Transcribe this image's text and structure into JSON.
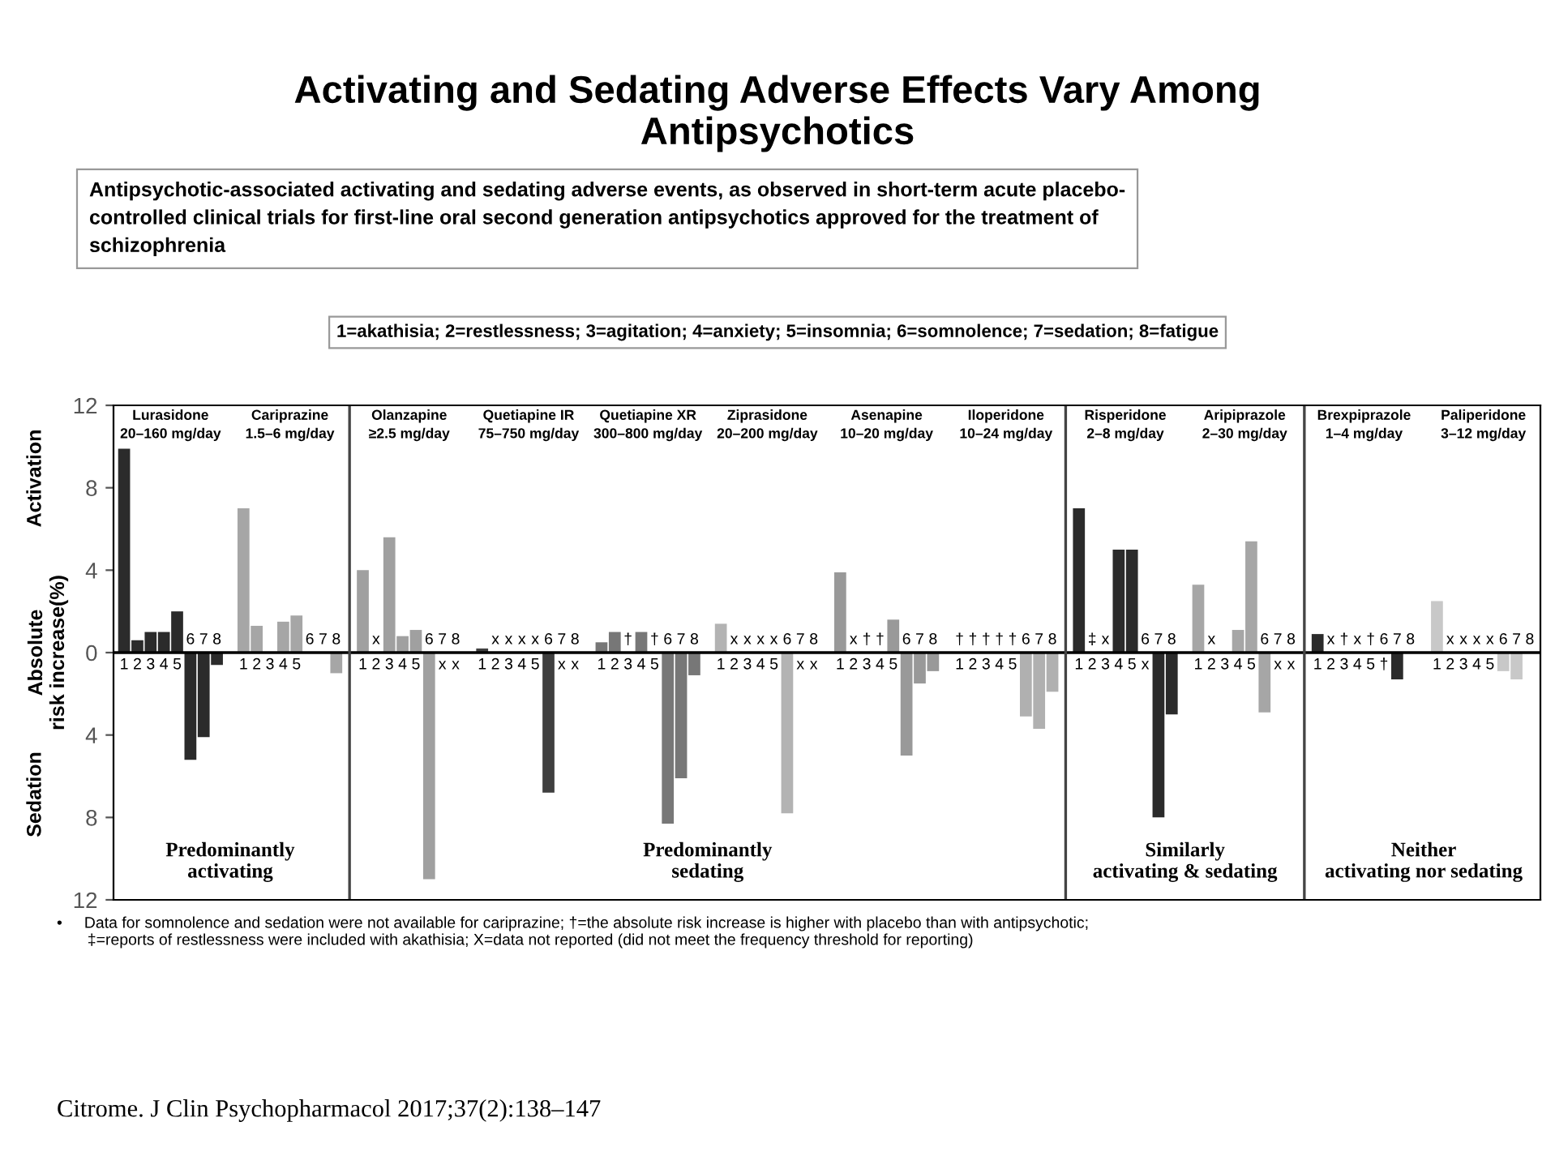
{
  "chart_data": {
    "type": "bar",
    "title": "Activating and Sedating Adverse Effects Vary Among\nAntipsychotics",
    "subtitle": "Antipsychotic-associated activating and sedating adverse events, as observed in short-term acute placebo-\ncontrolled clinical trials for first-line oral second generation antipsychotics approved for the treatment of\nschizophrenia",
    "ylabel": "Absolute\nrisk increase(%)",
    "categories": [
      "1",
      "2",
      "3",
      "4",
      "5",
      "6",
      "7",
      "8",
      null,
      "1",
      "2",
      "3",
      "4",
      "5",
      "6",
      "7",
      "8",
      null,
      "1",
      "2",
      "3",
      "4",
      "5",
      "6",
      "7",
      "8",
      null,
      "1",
      "2",
      "3",
      "4",
      "5",
      "6",
      "7",
      "8",
      null,
      "1",
      "2",
      "3",
      "4",
      "5",
      "6",
      "7",
      "8",
      null,
      "1",
      "2",
      "3",
      "4",
      "5",
      "6",
      "7",
      "8",
      null,
      "1",
      "2",
      "3",
      "4",
      "5",
      "6",
      "7",
      "8",
      null,
      "1",
      "2",
      "3",
      "4",
      "5",
      "6",
      "7",
      "8",
      null,
      "1",
      "2",
      "3",
      "4",
      "5",
      "6",
      "7",
      "8",
      null,
      "1",
      "2",
      "3",
      "4",
      "5",
      "6",
      "7",
      "8",
      null,
      "1",
      "2",
      "3",
      "4",
      "5",
      "6",
      "7",
      "8",
      null,
      "1",
      "2",
      "3",
      "4",
      "5",
      "6",
      "7",
      "8"
    ],
    "values": [
      9.9,
      0.6,
      1.0,
      1.0,
      2.0,
      -5.2,
      -4.1,
      -0.6,
      null,
      7.0,
      1.3,
      null,
      1.5,
      1.8,
      null,
      null,
      -1.0,
      null,
      4.0,
      null,
      5.6,
      0.8,
      1.1,
      -11.0,
      null,
      null,
      null,
      0.2,
      null,
      null,
      null,
      null,
      -6.8,
      null,
      null,
      null,
      0.5,
      1.0,
      null,
      1.0,
      null,
      -8.3,
      -6.1,
      -1.1,
      null,
      1.4,
      null,
      null,
      null,
      null,
      -7.8,
      null,
      null,
      null,
      3.9,
      null,
      null,
      null,
      1.6,
      -5.0,
      -1.5,
      -0.9,
      null,
      null,
      null,
      null,
      null,
      null,
      -3.1,
      -3.7,
      -1.9,
      null,
      7.0,
      null,
      null,
      5.0,
      5.0,
      null,
      -8.0,
      -3.0,
      null,
      3.3,
      null,
      null,
      1.1,
      5.4,
      -2.9,
      null,
      null,
      null,
      0.9,
      null,
      null,
      null,
      null,
      null,
      -1.3,
      null,
      null,
      2.5,
      null,
      null,
      null,
      null,
      -0.9,
      -1.3,
      null
    ],
    "value_labels": [
      null,
      null,
      null,
      null,
      null,
      null,
      null,
      null,
      null,
      null,
      null,
      null,
      null,
      null,
      null,
      null,
      null,
      null,
      null,
      "x",
      null,
      null,
      null,
      null,
      "x",
      "x",
      null,
      null,
      "x",
      "x",
      "x",
      "x",
      null,
      "x",
      "x",
      null,
      null,
      null,
      "†",
      null,
      "†",
      null,
      null,
      null,
      null,
      null,
      "x",
      "x",
      "x",
      "x",
      null,
      "x",
      "x",
      null,
      null,
      "x",
      "†",
      "†",
      null,
      null,
      null,
      null,
      null,
      "†",
      "†",
      "†",
      "†",
      "†",
      null,
      null,
      null,
      null,
      null,
      "‡",
      "x",
      null,
      null,
      "x",
      null,
      null,
      null,
      null,
      "x",
      null,
      null,
      null,
      null,
      "x",
      "x",
      null,
      null,
      "x",
      "†",
      "x",
      "†",
      "†",
      null,
      null,
      null,
      null,
      "x",
      "x",
      "x",
      "x",
      null,
      null,
      null
    ],
    "colors": [
      "#2b2b2b",
      "#2b2b2b",
      "#2b2b2b",
      "#2b2b2b",
      "#2b2b2b",
      "#2b2b2b",
      "#2b2b2b",
      "#2b2b2b",
      null,
      "#a6a6a6",
      "#a6a6a6",
      "#a6a6a6",
      "#a6a6a6",
      "#a6a6a6",
      "#a6a6a6",
      "#a6a6a6",
      "#a6a6a6",
      null,
      "#a0a0a0",
      "#a0a0a0",
      "#a0a0a0",
      "#a0a0a0",
      "#a0a0a0",
      "#a0a0a0",
      "#a0a0a0",
      "#a0a0a0",
      null,
      "#3f3f3f",
      "#3f3f3f",
      "#3f3f3f",
      "#3f3f3f",
      "#3f3f3f",
      "#3f3f3f",
      "#3f3f3f",
      "#3f3f3f",
      null,
      "#777777",
      "#777777",
      "#777777",
      "#777777",
      "#777777",
      "#777777",
      "#777777",
      "#777777",
      null,
      "#b3b3b3",
      "#b3b3b3",
      "#b3b3b3",
      "#b3b3b3",
      "#b3b3b3",
      "#b3b3b3",
      "#b3b3b3",
      "#b3b3b3",
      null,
      "#999999",
      "#999999",
      "#999999",
      "#999999",
      "#999999",
      "#999999",
      "#999999",
      "#999999",
      null,
      "#b0b0b0",
      "#b0b0b0",
      "#b0b0b0",
      "#b0b0b0",
      "#b0b0b0",
      "#b0b0b0",
      "#b0b0b0",
      "#b0b0b0",
      null,
      "#2b2b2b",
      "#2b2b2b",
      "#2b2b2b",
      "#2b2b2b",
      "#2b2b2b",
      "#2b2b2b",
      "#2b2b2b",
      "#2b2b2b",
      null,
      "#a6a6a6",
      "#a6a6a6",
      "#a6a6a6",
      "#a6a6a6",
      "#a6a6a6",
      "#a6a6a6",
      "#a6a6a6",
      "#a6a6a6",
      null,
      "#2b2b2b",
      "#2b2b2b",
      "#2b2b2b",
      "#2b2b2b",
      "#2b2b2b",
      "#2b2b2b",
      "#2b2b2b",
      "#2b2b2b",
      null,
      "#c8c8c8",
      "#c8c8c8",
      "#c8c8c8",
      "#c8c8c8",
      "#c8c8c8",
      "#c8c8c8",
      "#c8c8c8",
      "#c8c8c8"
    ],
    "ylim": [
      -12,
      12
    ],
    "yticks": [
      {
        "value": -12,
        "label": "12"
      },
      {
        "value": -8,
        "label": "8"
      },
      {
        "value": -4,
        "label": "4"
      },
      0,
      4,
      8,
      12
    ],
    "annotations": [
      "Lurasidone\n20–160 mg/day",
      "Cariprazine\n1.5–6 mg/day",
      "Olanzapine\n≥2.5 mg/day",
      "Quetiapine IR\n75–750 mg/day",
      "Quetiapine XR\n300–800 mg/day",
      "Ziprasidone\n20–200 mg/day",
      "Asenapine\n10–20 mg/day",
      "Iloperidone\n10–24 mg/day",
      "Risperidone\n2–8 mg/day",
      "Aripiprazole\n2–30 mg/day",
      "Brexpiprazole\n1–4 mg/day",
      "Paliperidone\n3–12 mg/day",
      "Predominantly\nactivating",
      "Predominantly\nsedating",
      "Similarly\nactivating & sedating",
      "Neither\nactivating nor sedating",
      "1=akathisia; 2=restlessness; 3=agitation; 4=anxiety; 5=insomnia; 6=somnolence; 7=sedation; 8=fatigue",
      "•     Data for somnolence and sedation were not available for cariprazine; †=the absolute risk increase is higher with placebo than with antipsychotic;\n       ‡=reports of restlessness were included with akathisia; X=data not reported (did not meet the frequency threshold for reporting)",
      "Citrome. J Clin Psychopharmacol 2017;37(2):138–147",
      "Activation",
      "Sedation"
    ],
    "grid": false,
    "legend": false
  }
}
